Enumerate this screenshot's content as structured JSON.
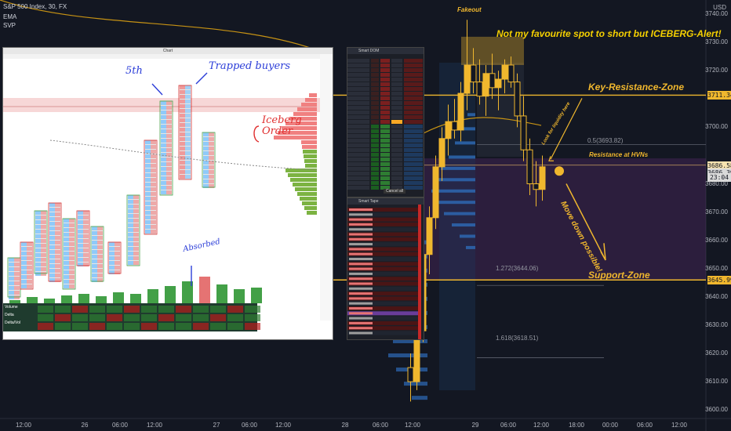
{
  "header": {
    "symbol": "S&P 500 Index, 30, FX",
    "ind1": "EMA",
    "ind2": "SVP"
  },
  "y_axis": {
    "currency": "USD",
    "labels": [
      {
        "v": 3740,
        "t": "3740.00"
      },
      {
        "v": 3730,
        "t": "3730.00"
      },
      {
        "v": 3720,
        "t": "3720.00"
      },
      {
        "v": 3700,
        "t": "3700.00"
      },
      {
        "v": 3680,
        "t": "3680.00"
      },
      {
        "v": 3670,
        "t": "3670.00"
      },
      {
        "v": 3660,
        "t": "3660.00"
      },
      {
        "v": 3650,
        "t": "3650.00"
      },
      {
        "v": 3640,
        "t": "3640.00"
      },
      {
        "v": 3630,
        "t": "3630.00"
      },
      {
        "v": 3620,
        "t": "3620.00"
      },
      {
        "v": 3610,
        "t": "3610.00"
      },
      {
        "v": 3600,
        "t": "3600.00"
      }
    ],
    "tags": [
      {
        "v": 3711.34,
        "t": "3711.34",
        "bg": "#f0b72e",
        "fg": "#131722"
      },
      {
        "v": 3686.58,
        "t": "3686.58",
        "bg": "#f7e3b0",
        "fg": "#131722"
      },
      {
        "v": 3684.0,
        "t": "3686.39",
        "bg": "#d9d9d9",
        "fg": "#131722"
      },
      {
        "v": 3682.4,
        "t": "23:04",
        "bg": "#d9d9d9",
        "fg": "#131722"
      },
      {
        "v": 3645.99,
        "t": "3645.99",
        "bg": "#f0b72e",
        "fg": "#131722"
      }
    ]
  },
  "x_axis": [
    {
      "x": 30,
      "t": "12:00"
    },
    {
      "x": 108,
      "t": "26"
    },
    {
      "x": 153,
      "t": "06:00"
    },
    {
      "x": 197,
      "t": "12:00"
    },
    {
      "x": 276,
      "t": "27"
    },
    {
      "x": 318,
      "t": "06:00"
    },
    {
      "x": 361,
      "t": "12:00"
    },
    {
      "x": 440,
      "t": "28"
    },
    {
      "x": 485,
      "t": "06:00"
    },
    {
      "x": 526,
      "t": "12:00"
    },
    {
      "x": 606,
      "t": "29"
    },
    {
      "x": 648,
      "t": "06:00"
    },
    {
      "x": 690,
      "t": "12:00"
    },
    {
      "x": 735,
      "t": "18:00"
    },
    {
      "x": 778,
      "t": "00:00"
    },
    {
      "x": 822,
      "t": "06:00"
    },
    {
      "x": 866,
      "t": "12:00"
    }
  ],
  "annotations": {
    "fakeout": "Fakeout",
    "headline": "Not my favourite spot to short but ICEBERG-Alert!",
    "key_resistance": "Key-Resistance-Zone",
    "resistance_hvn": "Resistance at HVNs",
    "support": "Support-Zone",
    "fib_05": "0.5(3693.82)",
    "fib_1272": "1.272(3644.06)",
    "fib_1618": "1.618(3618.51)",
    "move_down": "Move down possible!",
    "liquidity": "Look for liquidity here",
    "fifth": "5th",
    "trapped": "Trapped buyers",
    "iceberg": "Iceberg Order",
    "absorbed": "Absorbed"
  },
  "footprint_window": {
    "title": "Chart",
    "stats_labels": [
      "Volume",
      "Delta",
      "Delta/Vol"
    ]
  },
  "dom_window": {
    "title": "Smart DOM",
    "cancel": "Cancel all"
  },
  "tape_window": {
    "title": "Smart Tape"
  },
  "chart_data": {
    "type": "candlestick",
    "title": "S&P 500 Index, 30, FX",
    "ylim": [
      3597,
      3745
    ],
    "levels": [
      {
        "name": "Key-Resistance-Zone",
        "value": 3711.34
      },
      {
        "name": "Resistance at HVNs",
        "value": 3686.58
      },
      {
        "name": "Support-Zone",
        "value": 3645.99
      },
      {
        "name": "0.5",
        "value": 3693.82
      },
      {
        "name": "1.272",
        "value": 3644.06
      },
      {
        "name": "1.618",
        "value": 3618.51
      }
    ],
    "candles_visible": [
      {
        "o": 3615,
        "h": 3620,
        "l": 3603,
        "c": 3610
      },
      {
        "o": 3610,
        "h": 3632,
        "l": 3607,
        "c": 3628
      },
      {
        "o": 3628,
        "h": 3660,
        "l": 3624,
        "c": 3655
      },
      {
        "o": 3655,
        "h": 3672,
        "l": 3648,
        "c": 3668
      },
      {
        "o": 3668,
        "h": 3690,
        "l": 3664,
        "c": 3686
      },
      {
        "o": 3686,
        "h": 3700,
        "l": 3681,
        "c": 3696
      },
      {
        "o": 3696,
        "h": 3708,
        "l": 3690,
        "c": 3702
      },
      {
        "o": 3702,
        "h": 3710,
        "l": 3696,
        "c": 3699
      },
      {
        "o": 3699,
        "h": 3716,
        "l": 3695,
        "c": 3712
      },
      {
        "o": 3712,
        "h": 3738,
        "l": 3706,
        "c": 3722
      },
      {
        "o": 3722,
        "h": 3728,
        "l": 3712,
        "c": 3716
      },
      {
        "o": 3716,
        "h": 3724,
        "l": 3708,
        "c": 3711
      },
      {
        "o": 3711,
        "h": 3722,
        "l": 3704,
        "c": 3719
      },
      {
        "o": 3719,
        "h": 3726,
        "l": 3710,
        "c": 3714
      },
      {
        "o": 3714,
        "h": 3720,
        "l": 3706,
        "c": 3717
      },
      {
        "o": 3717,
        "h": 3724,
        "l": 3712,
        "c": 3722
      },
      {
        "o": 3722,
        "h": 3725,
        "l": 3714,
        "c": 3716
      },
      {
        "o": 3716,
        "h": 3719,
        "l": 3700,
        "c": 3704
      },
      {
        "o": 3704,
        "h": 3711,
        "l": 3688,
        "c": 3692
      },
      {
        "o": 3692,
        "h": 3696,
        "l": 3676,
        "c": 3680
      },
      {
        "o": 3680,
        "h": 3688,
        "l": 3672,
        "c": 3678
      },
      {
        "o": 3678,
        "h": 3690,
        "l": 3674,
        "c": 3686
      }
    ]
  }
}
